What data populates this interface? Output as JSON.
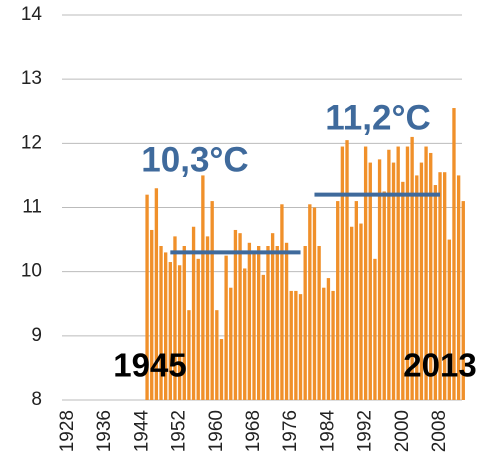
{
  "chart_data": {
    "type": "bar",
    "categories": [
      "1928",
      null,
      null,
      null,
      null,
      null,
      null,
      null,
      "1936",
      null,
      null,
      null,
      null,
      null,
      null,
      null,
      "1944",
      null,
      null,
      null,
      null,
      null,
      null,
      null,
      "1952",
      null,
      null,
      null,
      null,
      null,
      null,
      null,
      "1960",
      null,
      null,
      null,
      null,
      null,
      null,
      null,
      "1968",
      null,
      null,
      null,
      null,
      null,
      null,
      null,
      "1976",
      null,
      null,
      null,
      null,
      null,
      null,
      null,
      "1984",
      null,
      null,
      null,
      null,
      null,
      null,
      null,
      "1992",
      null,
      null,
      null,
      null,
      null,
      null,
      null,
      "2000",
      null,
      null,
      null,
      null,
      null,
      null,
      null,
      "2008",
      null,
      null,
      null,
      null,
      null
    ],
    "values": [
      null,
      null,
      null,
      null,
      null,
      null,
      null,
      null,
      null,
      null,
      null,
      null,
      null,
      null,
      null,
      null,
      null,
      11.2,
      10.65,
      11.3,
      10.4,
      10.3,
      10.15,
      10.55,
      10.1,
      10.4,
      9.4,
      10.7,
      10.2,
      11.5,
      10.55,
      11.1,
      9.4,
      8.95,
      10.25,
      9.75,
      10.65,
      10.6,
      10.05,
      10.45,
      10.3,
      10.4,
      9.95,
      10.4,
      10.6,
      10.4,
      11.05,
      10.45,
      9.7,
      9.7,
      9.65,
      10.4,
      11.05,
      11.0,
      10.4,
      9.75,
      9.9,
      9.7,
      11.1,
      11.95,
      12.05,
      10.7,
      11.1,
      10.75,
      11.95,
      11.7,
      10.2,
      11.75,
      11.25,
      11.9,
      11.7,
      11.95,
      11.4,
      11.95,
      12.1,
      11.5,
      11.7,
      11.95,
      11.85,
      11.35,
      11.55,
      11.55,
      10.5,
      12.55,
      11.5,
      11.1
    ],
    "color": "#f0902a",
    "ylim": [
      8,
      14
    ],
    "yticks": [
      8,
      9,
      10,
      11,
      12,
      13,
      14
    ],
    "grid": true,
    "mean_lines": [
      {
        "label": "10,3°C",
        "value": 10.3,
        "start": "1950",
        "end": "1978"
      },
      {
        "label": "11,2°C",
        "value": 11.2,
        "start": "1981",
        "end": "2008"
      }
    ],
    "mean_color": "#3f6a9c",
    "annotations": [
      "1945",
      "2013"
    ]
  }
}
